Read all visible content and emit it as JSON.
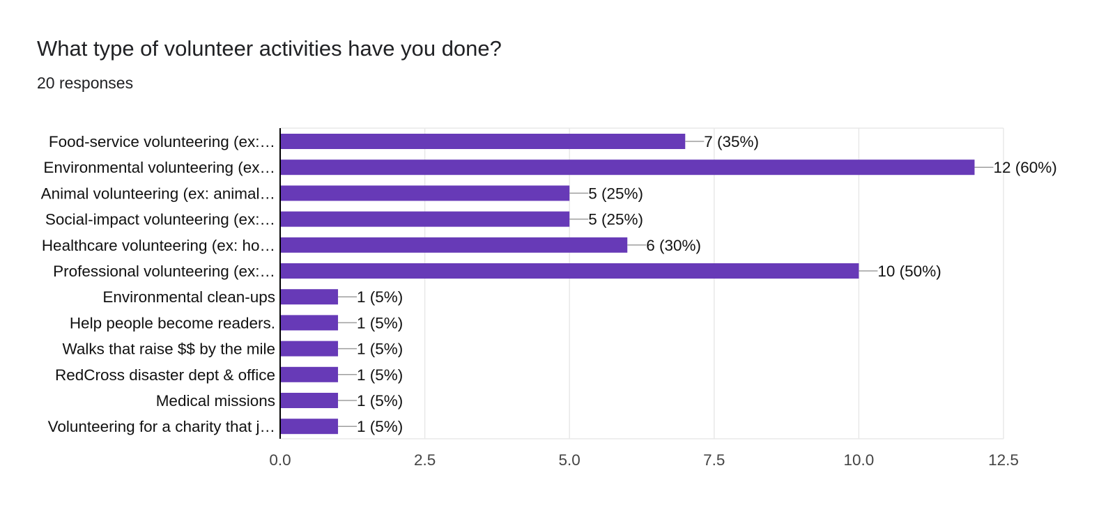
{
  "header": {
    "title": "What type of volunteer activities have you done?",
    "responses": "20 responses"
  },
  "colors": {
    "bar": "#673ab7",
    "grid": "#e8e8e8",
    "axis": "#000000",
    "leader": "#9e9e9e"
  },
  "chart_data": {
    "type": "bar",
    "orientation": "horizontal",
    "title": "What type of volunteer activities have you done?",
    "subtitle": "20 responses",
    "categories": [
      "Food-service volunteering (ex:…",
      "Environmental volunteering (ex…",
      "Animal volunteering (ex: animal…",
      "Social-impact volunteering (ex:…",
      "Healthcare volunteering (ex: ho…",
      "Professional volunteering (ex:…",
      "Environmental clean-ups",
      "Help people become readers.",
      "Walks that raise $$ by the mile",
      "RedCross disaster dept & office",
      "Medical missions",
      "Volunteering for a charity that j…"
    ],
    "values": [
      7,
      12,
      5,
      5,
      6,
      10,
      1,
      1,
      1,
      1,
      1,
      1
    ],
    "data_labels": [
      "7 (35%)",
      "12 (60%)",
      "5 (25%)",
      "5 (25%)",
      "6 (30%)",
      "10 (50%)",
      "1 (5%)",
      "1 (5%)",
      "1 (5%)",
      "1 (5%)",
      "1 (5%)",
      "1 (5%)"
    ],
    "xlim": [
      0,
      12.5
    ],
    "xticks": [
      0,
      2.5,
      5,
      7.5,
      10,
      12.5
    ],
    "xtick_labels": [
      "0.0",
      "2.5",
      "5.0",
      "7.5",
      "10.0",
      "12.5"
    ],
    "grid": true,
    "legend": "none"
  }
}
